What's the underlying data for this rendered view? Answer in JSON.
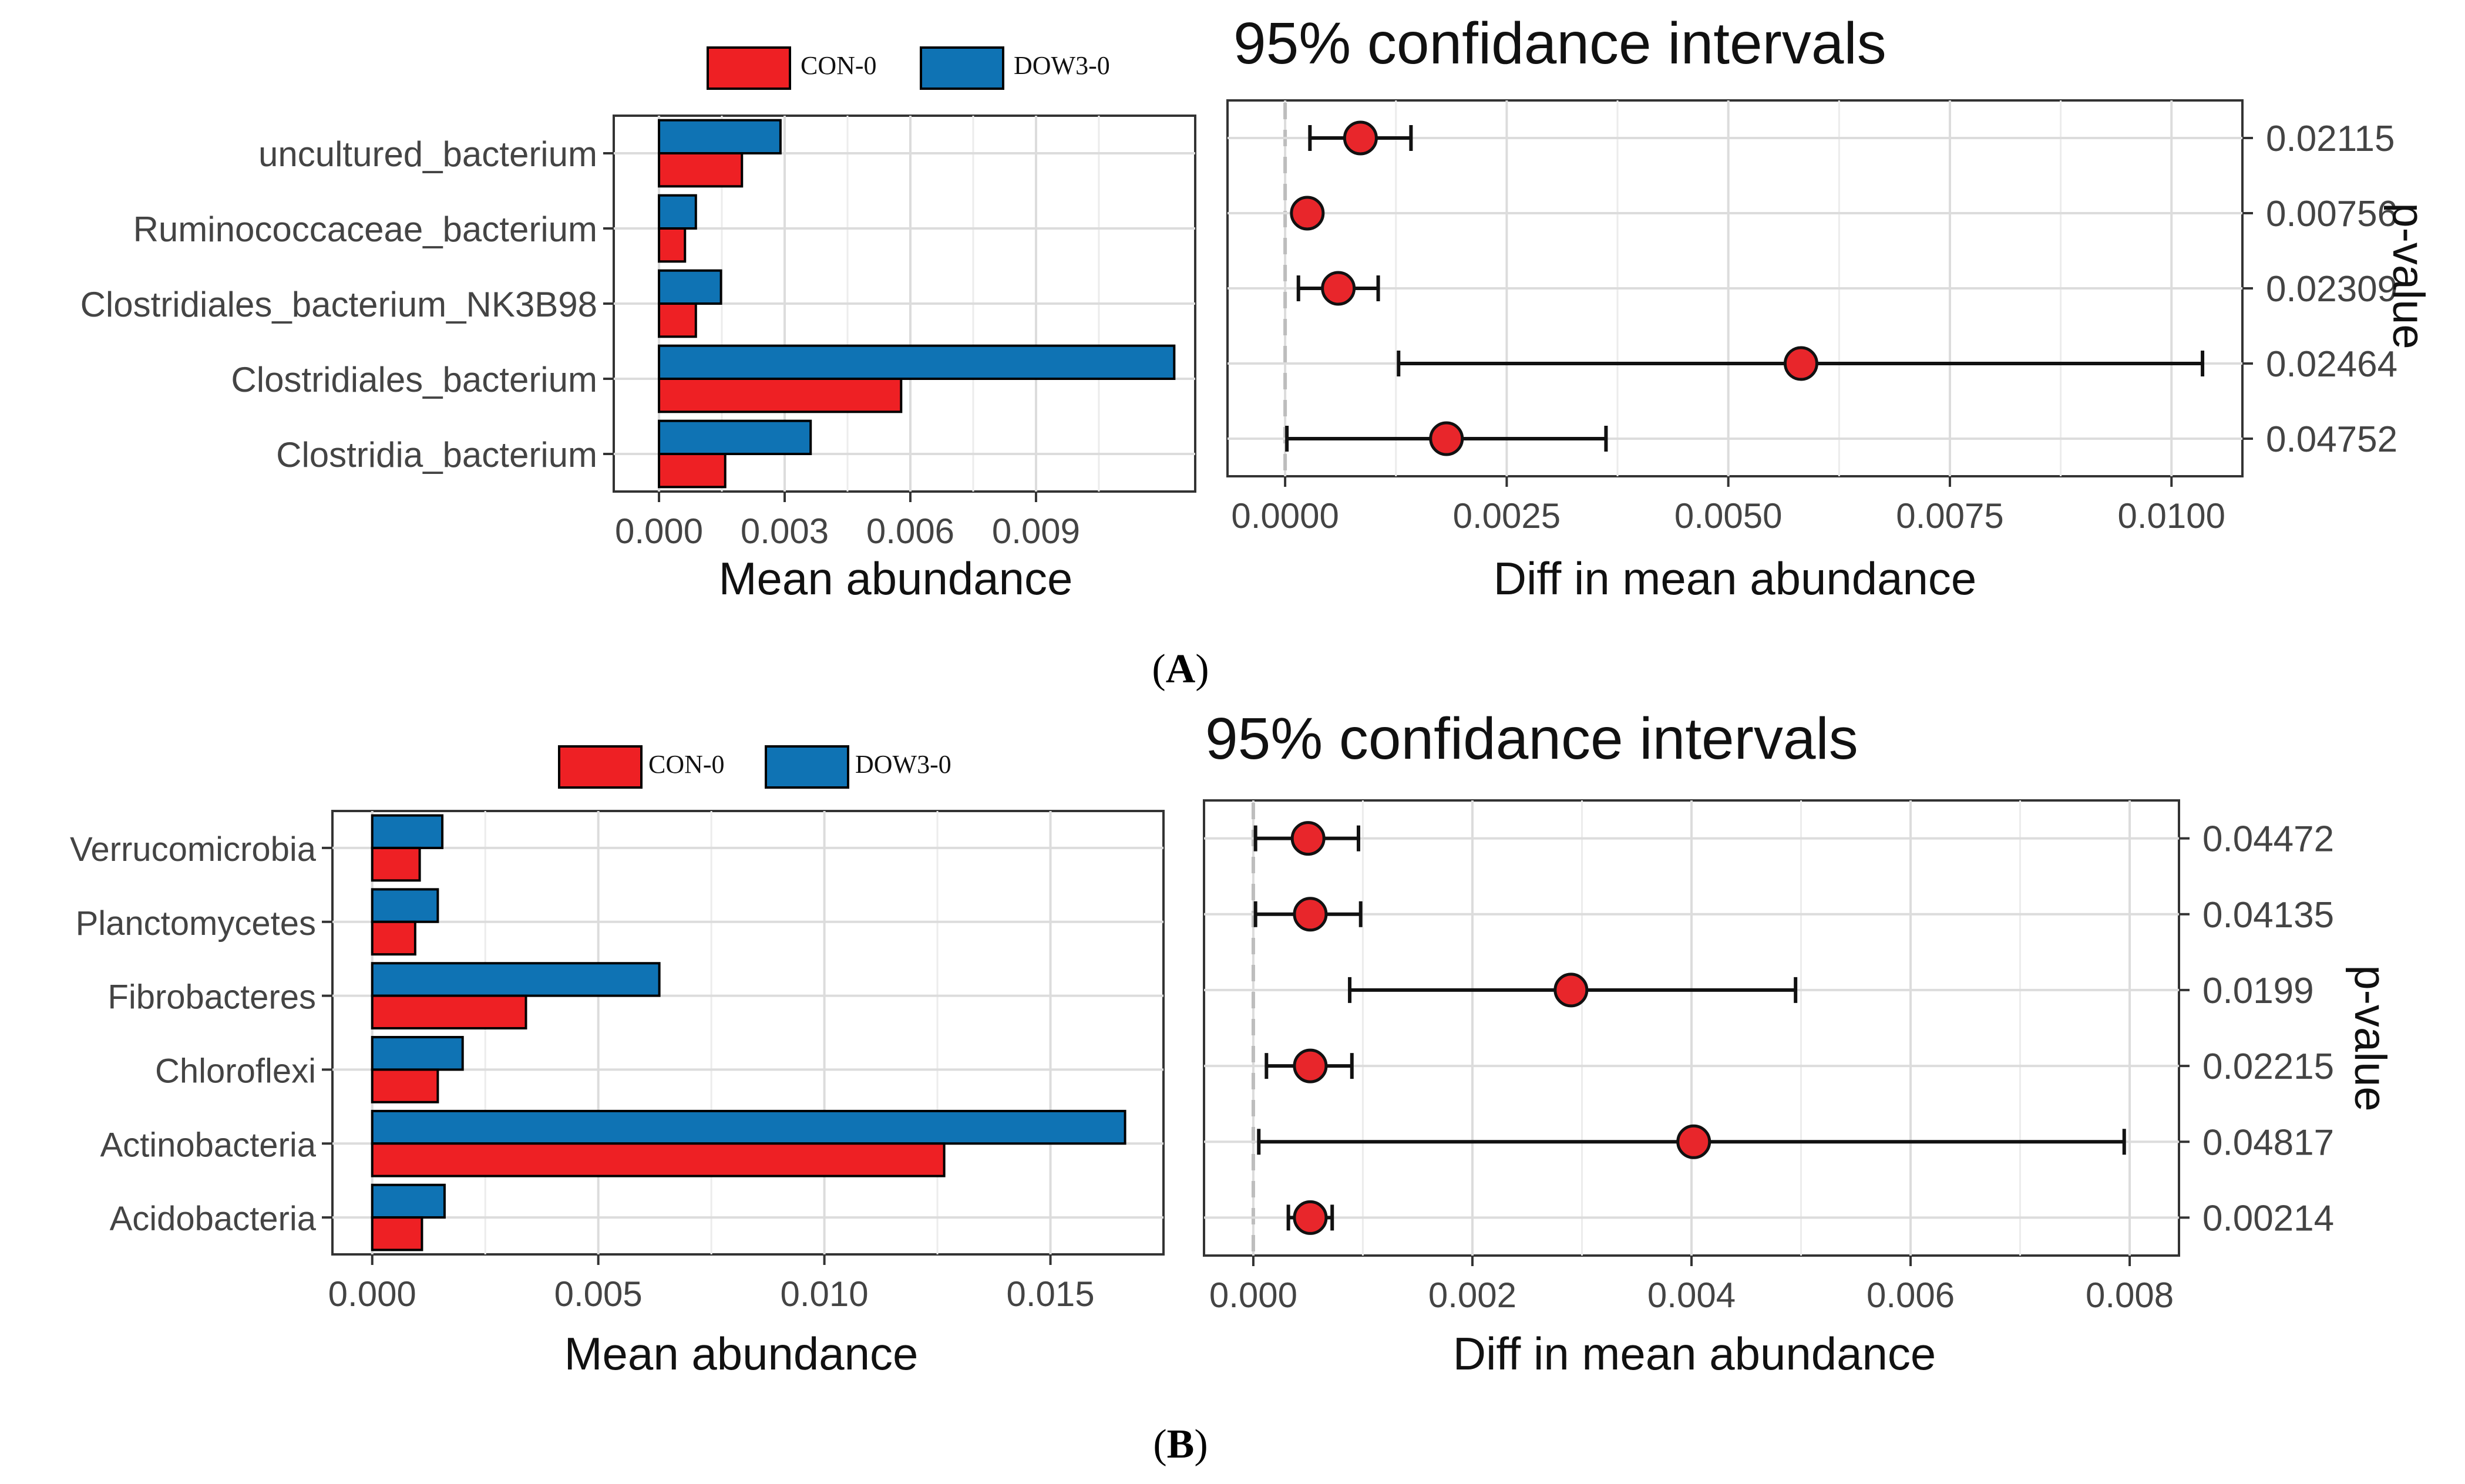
{
  "colors": {
    "con": "#ee2024",
    "dow": "#0f73b4",
    "dot": "#e8262b",
    "grid": "#ececec",
    "axis": "#333333",
    "zero": "#bdbdbd"
  },
  "panels": [
    {
      "label": "A",
      "legend": {
        "con": "CON-0",
        "dow": "DOW3-0"
      },
      "ci_title": "95% confidance intervals",
      "pvalue_label": "p-value"
    },
    {
      "label": "B",
      "legend": {
        "con": "CON-0",
        "dow": "DOW3-0"
      },
      "ci_title": "95% confidance intervals",
      "pvalue_label": "p-value"
    }
  ],
  "chart_data": [
    {
      "panel": "A",
      "type": "bar",
      "orientation": "horizontal",
      "title": "",
      "xlabel": "Mean abundance",
      "ylabel": "",
      "categories": [
        "uncultured_bacterium",
        "Ruminococcaceae_bacterium",
        "Clostridiales_bacterium_NK3B98",
        "Clostridiales_bacterium",
        "Clostridia_bacterium"
      ],
      "series": [
        {
          "name": "DOW3-0",
          "values": [
            0.0029,
            0.00088,
            0.00148,
            0.0123,
            0.00362
          ]
        },
        {
          "name": "CON-0",
          "values": [
            0.00198,
            0.00062,
            0.00088,
            0.00578,
            0.00158
          ]
        }
      ],
      "xlim": [
        -0.00108,
        0.0128
      ],
      "xticks": [
        0.0,
        0.003,
        0.006,
        0.009
      ],
      "xtick_labels": [
        "0.000",
        "0.003",
        "0.006",
        "0.009"
      ],
      "grid": true
    },
    {
      "panel": "A",
      "type": "scatter",
      "subtype": "errorbar",
      "title": "95% confidance intervals",
      "xlabel": "Diff in mean abundance",
      "ylabel": "p-value",
      "categories": [
        "uncultured_bacterium",
        "Ruminococcaceae_bacterium",
        "Clostridiales_bacterium_NK3B98",
        "Clostridiales_bacterium",
        "Clostridia_bacterium"
      ],
      "estimate": [
        0.00085,
        0.00025,
        0.0006,
        0.00582,
        0.00182
      ],
      "lower": [
        0.00028,
        0.00025,
        0.00015,
        0.00128,
        2e-05
      ],
      "upper": [
        0.00142,
        0.00025,
        0.00105,
        0.01035,
        0.00362
      ],
      "pvalues": [
        "0.02115",
        "0.00756",
        "0.02309",
        "0.02464",
        "0.04752"
      ],
      "xlim": [
        -0.00065,
        0.0108
      ],
      "xticks": [
        0.0,
        0.0025,
        0.005,
        0.0075,
        0.01
      ],
      "xtick_labels": [
        "0.0000",
        "0.0025",
        "0.0050",
        "0.0075",
        "0.0100"
      ],
      "grid": true
    },
    {
      "panel": "B",
      "type": "bar",
      "orientation": "horizontal",
      "title": "",
      "xlabel": "Mean abundance",
      "ylabel": "",
      "categories": [
        "Verrucomicrobia",
        "Planctomycetes",
        "Fibrobacteres",
        "Chloroflexi",
        "Actinobacteria",
        "Acidobacteria"
      ],
      "series": [
        {
          "name": "DOW3-0",
          "values": [
            0.00155,
            0.00145,
            0.00635,
            0.002,
            0.01665,
            0.0016
          ]
        },
        {
          "name": "CON-0",
          "values": [
            0.00105,
            0.00095,
            0.0034,
            0.00145,
            0.01265,
            0.0011
          ]
        }
      ],
      "xlim": [
        -0.00088,
        0.0175
      ],
      "xticks": [
        0.0,
        0.005,
        0.01,
        0.015
      ],
      "xtick_labels": [
        "0.000",
        "0.005",
        "0.010",
        "0.015"
      ],
      "grid": true
    },
    {
      "panel": "B",
      "type": "scatter",
      "subtype": "errorbar",
      "title": "95% confidance intervals",
      "xlabel": "Diff in mean abundance",
      "ylabel": "p-value",
      "categories": [
        "Verrucomicrobia",
        "Planctomycetes",
        "Fibrobacteres",
        "Chloroflexi",
        "Actinobacteria",
        "Acidobacteria"
      ],
      "estimate": [
        0.0005,
        0.00052,
        0.0029,
        0.00052,
        0.00402,
        0.00052
      ],
      "lower": [
        2e-05,
        2e-05,
        0.00088,
        0.00012,
        5e-05,
        0.00032
      ],
      "upper": [
        0.00096,
        0.00098,
        0.00495,
        0.0009,
        0.00795,
        0.00072
      ],
      "pvalues": [
        "0.04472",
        "0.04135",
        "0.0199",
        "0.02215",
        "0.04817",
        "0.00214"
      ],
      "xlim": [
        -0.00045,
        0.00845
      ],
      "xticks": [
        0.0,
        0.002,
        0.004,
        0.006,
        0.008
      ],
      "xtick_labels": [
        "0.000",
        "0.002",
        "0.004",
        "0.006",
        "0.008"
      ],
      "grid": true
    }
  ]
}
